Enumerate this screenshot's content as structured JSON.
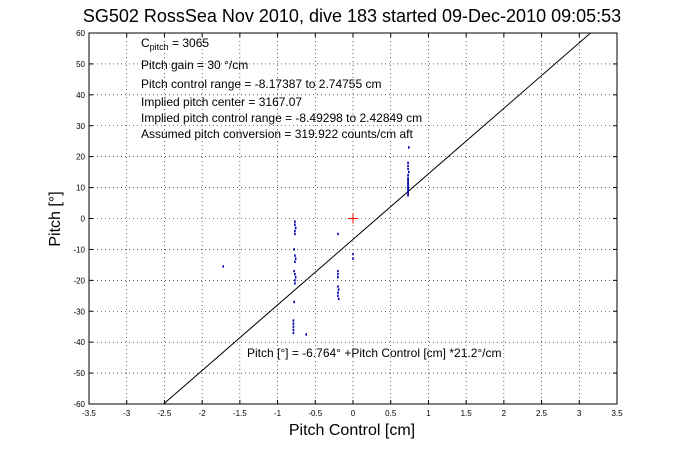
{
  "chart_data": {
    "type": "scatter",
    "title": "SG502 RossSea Nov 2010, dive 183 started 09-Dec-2010 09:05:53",
    "xlabel": "Pitch Control [cm]",
    "ylabel": "Pitch [°]",
    "xlim": [
      -3.5,
      3.5
    ],
    "ylim": [
      -60,
      60
    ],
    "xticks": [
      -3.5,
      -3,
      -2.5,
      -2,
      -1.5,
      -1,
      -0.5,
      0,
      0.5,
      1,
      1.5,
      2,
      2.5,
      3,
      3.5
    ],
    "xtick_labels": [
      "-3.5",
      "-3",
      "-2.5",
      "-2",
      "-1.5",
      "-1",
      "-0.5",
      "0",
      "0.5",
      "1",
      "1.5",
      "2",
      "2.5",
      "3",
      "3.5"
    ],
    "yticks": [
      -60,
      -50,
      -40,
      -30,
      -20,
      -10,
      0,
      10,
      20,
      30,
      40,
      50,
      60
    ],
    "ytick_labels": [
      "-60",
      "-50",
      "-40",
      "-30",
      "-20",
      "-10",
      "0",
      "10",
      "20",
      "30",
      "40",
      "50",
      "60"
    ],
    "grid": true,
    "info_lines": {
      "c_pitch_label": "C",
      "c_pitch_sub": "pitch",
      "c_pitch_value": " = 3065",
      "gain": "Pitch gain = 30 °/cm",
      "range": "Pitch control range = -8.17387 to 2.74755 cm",
      "center": "Implied pitch center = 3167.07",
      "implied_range": "Implied pitch control range = -8.49298 to 2.42849 cm",
      "conversion": "Assumed pitch conversion = 319.922 counts/cm aft"
    },
    "fit_label": "Pitch [°] = -6.764° +Pitch Control [cm] *21.2°/cm",
    "fit_line": {
      "intercept": -6.764,
      "slope": 21.2
    },
    "center_marker": {
      "x": 0,
      "y": 0,
      "color": "#ff0000"
    },
    "series": [
      {
        "color": "#0000aa",
        "points": [
          [
            -1.72,
            -15.5
          ],
          [
            -0.77,
            -1
          ],
          [
            -0.77,
            -2
          ],
          [
            -0.76,
            -3
          ],
          [
            -0.77,
            -4
          ],
          [
            -0.77,
            -5
          ],
          [
            -0.78,
            -10
          ],
          [
            -0.77,
            -12
          ],
          [
            -0.76,
            -13
          ],
          [
            -0.77,
            -14
          ],
          [
            -0.78,
            -17
          ],
          [
            -0.77,
            -18
          ],
          [
            -0.76,
            -19
          ],
          [
            -0.77,
            -20
          ],
          [
            -0.77,
            -21
          ],
          [
            -0.78,
            -27
          ],
          [
            -0.79,
            -33
          ],
          [
            -0.79,
            -34
          ],
          [
            -0.79,
            -35
          ],
          [
            -0.79,
            -36
          ],
          [
            -0.79,
            -37
          ],
          [
            -0.62,
            -37.5
          ],
          [
            -0.2,
            -5
          ],
          [
            -0.2,
            -17
          ],
          [
            -0.2,
            -18
          ],
          [
            -0.2,
            -19
          ],
          [
            -0.2,
            -22
          ],
          [
            -0.19,
            -23
          ],
          [
            -0.2,
            -24
          ],
          [
            -0.2,
            -25
          ],
          [
            -0.19,
            -26
          ],
          [
            0.0,
            -11.5
          ],
          [
            0.0,
            -13
          ],
          [
            0.73,
            7.5
          ],
          [
            0.73,
            8
          ],
          [
            0.73,
            8.5
          ],
          [
            0.73,
            9
          ],
          [
            0.73,
            9.5
          ],
          [
            0.73,
            10
          ],
          [
            0.73,
            10.5
          ],
          [
            0.73,
            11
          ],
          [
            0.73,
            11.5
          ],
          [
            0.73,
            12
          ],
          [
            0.73,
            12.5
          ],
          [
            0.73,
            13
          ],
          [
            0.73,
            14
          ],
          [
            0.74,
            15
          ],
          [
            0.73,
            16
          ],
          [
            0.73,
            17
          ],
          [
            0.73,
            18
          ],
          [
            0.74,
            23
          ]
        ]
      }
    ]
  }
}
